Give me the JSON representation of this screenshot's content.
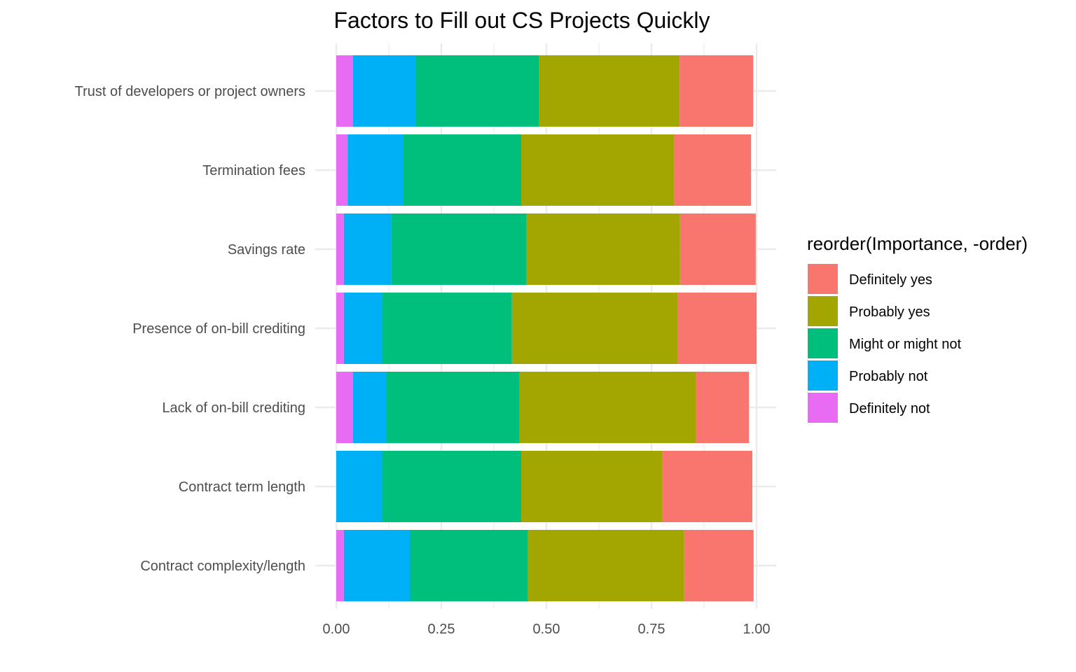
{
  "chart_data": {
    "type": "bar",
    "orientation": "horizontal",
    "stacked": true,
    "title": "Factors to Fill out CS Projects Quickly",
    "xlabel": "",
    "ylabel": "",
    "xlim": [
      0,
      1
    ],
    "xticks": [
      "0.00",
      "0.25",
      "0.50",
      "0.75",
      "1.00"
    ],
    "grid": true,
    "legend_placement": "right",
    "legend_title": "reorder(Importance, -order)",
    "categories": [
      "Trust of developers or project owners",
      "Termination fees",
      "Savings rate",
      "Presence of on-bill crediting",
      "Lack of on-bill crediting",
      "Contract term length",
      "Contract complexity/length"
    ],
    "series": [
      {
        "name": "Definitely not",
        "color": "#E76BF3",
        "values": [
          0.04,
          0.027,
          0.018,
          0.018,
          0.04,
          0.0,
          0.018
        ]
      },
      {
        "name": "Probably not",
        "color": "#00B0F6",
        "values": [
          0.15,
          0.133,
          0.113,
          0.092,
          0.08,
          0.11,
          0.157
        ]
      },
      {
        "name": "Might or might not",
        "color": "#00BF7D",
        "values": [
          0.293,
          0.28,
          0.322,
          0.308,
          0.316,
          0.33,
          0.28
        ]
      },
      {
        "name": "Probably yes",
        "color": "#A3A500",
        "values": [
          0.334,
          0.364,
          0.365,
          0.395,
          0.419,
          0.335,
          0.373
        ]
      },
      {
        "name": "Definitely yes",
        "color": "#F8766D",
        "values": [
          0.175,
          0.183,
          0.18,
          0.187,
          0.127,
          0.215,
          0.165
        ]
      }
    ],
    "legend_order": [
      "Definitely yes",
      "Probably yes",
      "Might or might not",
      "Probably not",
      "Definitely not"
    ]
  }
}
